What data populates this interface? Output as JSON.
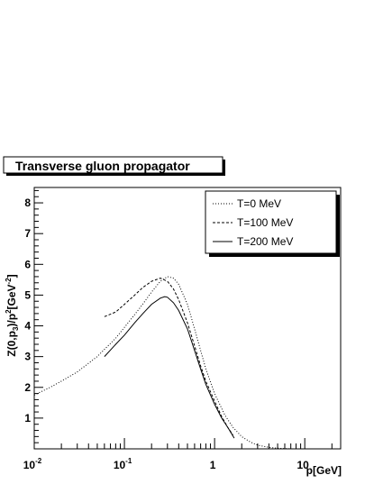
{
  "chart_data": {
    "type": "line",
    "title": "Transverse gluon propagator",
    "xlabel": "p[GeV]",
    "ylabel_parts": [
      "Z(0,p",
      "3",
      ")/p",
      "2",
      "[GeV",
      "-2",
      "]"
    ],
    "xscale": "log",
    "xlim": [
      0.01,
      25
    ],
    "ylim": [
      0,
      8.5
    ],
    "x_ticks": [
      {
        "value": 0.01,
        "base": "10",
        "exp": "-2"
      },
      {
        "value": 0.1,
        "base": "10",
        "exp": "-1"
      },
      {
        "value": 1,
        "base": "1",
        "exp": ""
      },
      {
        "value": 10,
        "base": "10",
        "exp": ""
      }
    ],
    "y_ticks": [
      1,
      2,
      3,
      4,
      5,
      6,
      7,
      8
    ],
    "legend_position": "top-right",
    "series": [
      {
        "name": "T=0 MeV",
        "style": "dotted",
        "points": [
          [
            0.01,
            1.75
          ],
          [
            0.015,
            2.0
          ],
          [
            0.02,
            2.2
          ],
          [
            0.03,
            2.5
          ],
          [
            0.05,
            3.0
          ],
          [
            0.08,
            3.6
          ],
          [
            0.1,
            3.95
          ],
          [
            0.15,
            4.6
          ],
          [
            0.2,
            5.1
          ],
          [
            0.25,
            5.45
          ],
          [
            0.3,
            5.6
          ],
          [
            0.35,
            5.55
          ],
          [
            0.4,
            5.35
          ],
          [
            0.5,
            4.7
          ],
          [
            0.6,
            3.9
          ],
          [
            0.7,
            3.2
          ],
          [
            0.8,
            2.6
          ],
          [
            1.0,
            1.8
          ],
          [
            1.3,
            1.1
          ],
          [
            1.6,
            0.7
          ],
          [
            2.0,
            0.4
          ],
          [
            2.5,
            0.22
          ],
          [
            3.0,
            0.12
          ],
          [
            4.0,
            0.05
          ],
          [
            5.0,
            0.02
          ],
          [
            7.0,
            0.0
          ]
        ]
      },
      {
        "name": "T=100 MeV",
        "style": "dashed",
        "points": [
          [
            0.06,
            4.3
          ],
          [
            0.08,
            4.45
          ],
          [
            0.1,
            4.7
          ],
          [
            0.13,
            5.0
          ],
          [
            0.16,
            5.25
          ],
          [
            0.2,
            5.45
          ],
          [
            0.25,
            5.55
          ],
          [
            0.3,
            5.45
          ],
          [
            0.35,
            5.2
          ],
          [
            0.4,
            4.85
          ],
          [
            0.5,
            4.1
          ],
          [
            0.6,
            3.35
          ],
          [
            0.7,
            2.7
          ],
          [
            0.8,
            2.2
          ],
          [
            1.0,
            1.55
          ],
          [
            1.2,
            1.05
          ],
          [
            1.4,
            0.7
          ],
          [
            1.6,
            0.45
          ]
        ]
      },
      {
        "name": "T=200 MeV",
        "style": "solid",
        "points": [
          [
            0.06,
            3.0
          ],
          [
            0.08,
            3.4
          ],
          [
            0.1,
            3.7
          ],
          [
            0.13,
            4.1
          ],
          [
            0.16,
            4.4
          ],
          [
            0.2,
            4.7
          ],
          [
            0.25,
            4.9
          ],
          [
            0.28,
            4.95
          ],
          [
            0.3,
            4.93
          ],
          [
            0.35,
            4.75
          ],
          [
            0.4,
            4.5
          ],
          [
            0.5,
            3.9
          ],
          [
            0.6,
            3.2
          ],
          [
            0.7,
            2.6
          ],
          [
            0.8,
            2.1
          ],
          [
            1.0,
            1.45
          ],
          [
            1.2,
            1.0
          ],
          [
            1.4,
            0.7
          ],
          [
            1.65,
            0.35
          ]
        ]
      }
    ]
  }
}
